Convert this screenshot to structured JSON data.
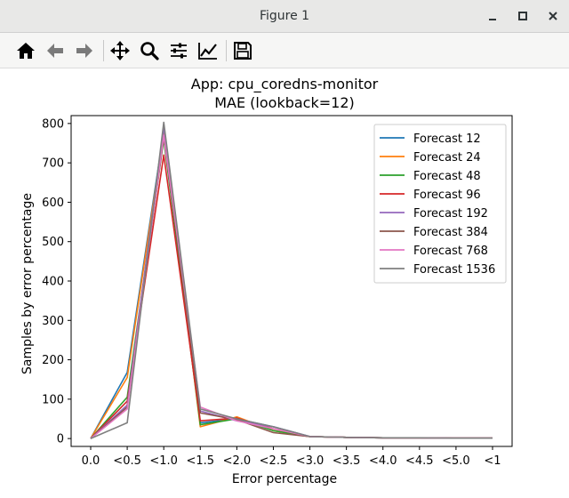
{
  "window": {
    "title": "Figure 1"
  },
  "toolbar": {
    "icons": [
      "home-icon",
      "back-arrow-icon",
      "forward-arrow-icon",
      "pan-icon",
      "zoom-icon",
      "configure-subplots-icon",
      "edit-axis-icon",
      "save-icon"
    ]
  },
  "chart_data": {
    "type": "line",
    "title": "App: cpu_coredns-monitor",
    "subtitle": "MAE (lookback=12)",
    "xlabel": "Error percentage",
    "ylabel": "Samples by error percentage",
    "categories": [
      "0.0",
      "<0.5",
      "<1.0",
      "<1.5",
      "<2.0",
      "<2.5",
      "<3.0",
      "<3.5",
      "<4.0",
      "<4.5",
      "<5.0",
      "<1"
    ],
    "ylim": [
      -20,
      820
    ],
    "yticks": [
      0,
      100,
      200,
      300,
      400,
      500,
      600,
      700,
      800
    ],
    "legend_position": "top-right",
    "grid": false,
    "series": [
      {
        "name": "Forecast 12",
        "color": "#1f77b4",
        "values": [
          0,
          168,
          780,
          40,
          50,
          30,
          5,
          3,
          2,
          2,
          1,
          1
        ]
      },
      {
        "name": "Forecast 24",
        "color": "#ff7f0e",
        "values": [
          0,
          155,
          775,
          30,
          55,
          20,
          5,
          3,
          2,
          2,
          1,
          1
        ]
      },
      {
        "name": "Forecast 48",
        "color": "#2ca02c",
        "values": [
          0,
          105,
          760,
          35,
          50,
          20,
          5,
          3,
          2,
          2,
          1,
          1
        ]
      },
      {
        "name": "Forecast 96",
        "color": "#d62728",
        "values": [
          0,
          95,
          720,
          45,
          52,
          25,
          5,
          3,
          2,
          2,
          1,
          1
        ]
      },
      {
        "name": "Forecast 192",
        "color": "#9467bd",
        "values": [
          0,
          85,
          790,
          70,
          45,
          30,
          5,
          3,
          2,
          2,
          1,
          1
        ]
      },
      {
        "name": "Forecast 384",
        "color": "#8c564b",
        "values": [
          0,
          80,
          765,
          65,
          48,
          15,
          5,
          3,
          2,
          2,
          1,
          1
        ]
      },
      {
        "name": "Forecast 768",
        "color": "#e377c2",
        "values": [
          0,
          75,
          770,
          80,
          45,
          25,
          5,
          3,
          2,
          2,
          1,
          1
        ]
      },
      {
        "name": "Forecast 1536",
        "color": "#7f7f7f",
        "values": [
          0,
          40,
          803,
          75,
          50,
          30,
          5,
          3,
          2,
          2,
          1,
          1
        ]
      }
    ]
  }
}
